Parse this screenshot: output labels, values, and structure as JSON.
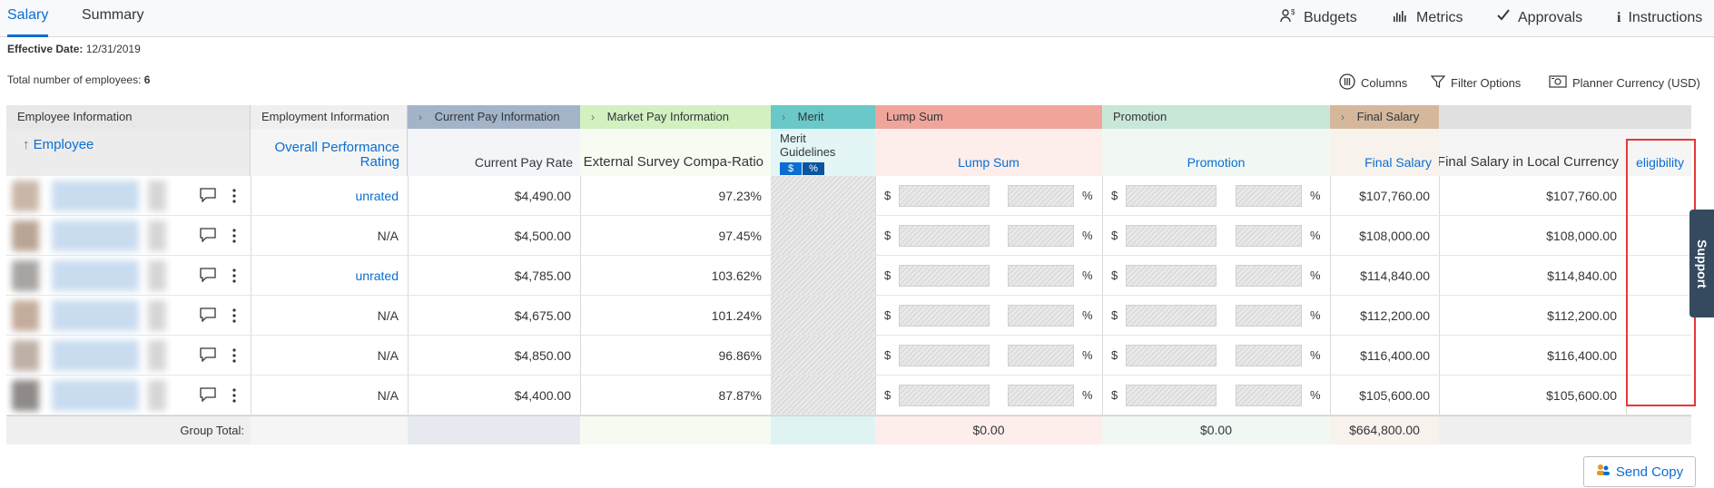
{
  "tabs": [
    {
      "label": "Salary",
      "active": true
    },
    {
      "label": "Summary",
      "active": false
    }
  ],
  "toolbar": {
    "budgets": "Budgets",
    "metrics": "Metrics",
    "approvals": "Approvals",
    "instructions": "Instructions"
  },
  "info": {
    "effective_date_label": "Effective Date:",
    "effective_date": "12/31/2019",
    "total_label": "Total number of employees:",
    "total_count": "6"
  },
  "tools": {
    "columns": "Columns",
    "filter": "Filter Options",
    "currency": "Planner Currency (USD)"
  },
  "groups": {
    "employee_info": "Employee Information",
    "employment_info": "Employment Information",
    "current_pay": "Current Pay Information",
    "market_pay": "Market Pay Information",
    "merit": "Merit",
    "lump_sum": "Lump Sum",
    "promotion": "Promotion",
    "final_salary": "Final Salary"
  },
  "headers": {
    "employee": "Employee",
    "performance": "Overall Performance Rating",
    "performance_l1": "Overall Performance",
    "performance_l2": "Rating",
    "current_pay_rate": "Current Pay Rate",
    "compa_ratio": "External Survey Compa-Ratio",
    "merit_guidelines_l1": "Merit",
    "merit_guidelines_l2": "Guidelines",
    "merit_dollar": "$",
    "merit_percent": "%",
    "lump_sum": "Lump Sum",
    "promotion": "Promotion",
    "final_salary": "Final Salary",
    "final_local": "Final Salary in Local Currency",
    "eligibility": "eligibility"
  },
  "rows": [
    {
      "rating": "unrated",
      "rating_link": true,
      "pay_rate": "$4,490.00",
      "compa": "97.23%",
      "final": "$107,760.00",
      "final_local": "$107,760.00"
    },
    {
      "rating": "N/A",
      "rating_link": false,
      "pay_rate": "$4,500.00",
      "compa": "97.45%",
      "final": "$108,000.00",
      "final_local": "$108,000.00"
    },
    {
      "rating": "unrated",
      "rating_link": true,
      "pay_rate": "$4,785.00",
      "compa": "103.62%",
      "final": "$114,840.00",
      "final_local": "$114,840.00"
    },
    {
      "rating": "N/A",
      "rating_link": false,
      "pay_rate": "$4,675.00",
      "compa": "101.24%",
      "final": "$112,200.00",
      "final_local": "$112,200.00"
    },
    {
      "rating": "N/A",
      "rating_link": false,
      "pay_rate": "$4,850.00",
      "compa": "96.86%",
      "final": "$116,400.00",
      "final_local": "$116,400.00"
    },
    {
      "rating": "N/A",
      "rating_link": false,
      "pay_rate": "$4,400.00",
      "compa": "87.87%",
      "final": "$105,600.00",
      "final_local": "$105,600.00"
    }
  ],
  "currency_symbol": "$",
  "percent_symbol": "%",
  "totals": {
    "label": "Group Total:",
    "lump_sum": "$0.00",
    "promotion": "$0.00",
    "final": "$664,800.00"
  },
  "support": "Support",
  "send_copy": "Send Copy",
  "colors": {
    "accent": "#0a6ed1",
    "current_pay": "#a3b4c9",
    "market_pay": "#d3f0c1",
    "merit": "#6ac8c8",
    "lump_sum": "#f0a59b",
    "promotion": "#c9e7d7",
    "final_salary": "#d5b89c",
    "highlight": "#e53935"
  },
  "icons": {
    "budgets": "people-dollar-icon",
    "metrics": "bar-chart-icon",
    "approvals": "checkmark-icon",
    "instructions": "info-icon",
    "columns": "columns-icon",
    "filter": "filter-icon",
    "currency": "currency-icon",
    "comment": "comment-icon",
    "more": "more-vertical-icon",
    "sort": "sort-up-icon"
  }
}
